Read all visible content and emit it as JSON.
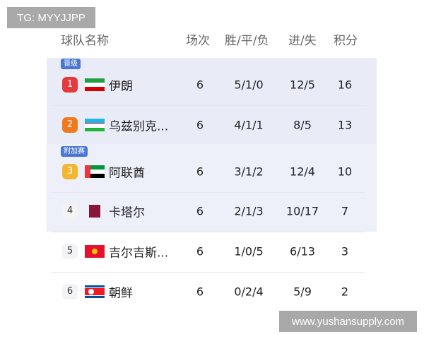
{
  "watermarks": {
    "top": "TG: MYYJJPP",
    "bottom": "www.yushansupply.com"
  },
  "header": {
    "team": "球队名称",
    "played": "场次",
    "wdl": "胜/平/负",
    "goals": "进/失",
    "points": "积分"
  },
  "tags": {
    "promoted": "晋级",
    "playoff": "附加赛"
  },
  "rows": [
    {
      "rank": "1",
      "rank_color": "#e5393b",
      "flag": "iran",
      "name": "伊朗",
      "played": "6",
      "wdl": "5/1/0",
      "goals": "12/5",
      "points": "16"
    },
    {
      "rank": "2",
      "rank_color": "#ef7a1e",
      "flag": "uzbekistan",
      "name": "乌兹别克...",
      "played": "6",
      "wdl": "4/1/1",
      "goals": "8/5",
      "points": "13"
    },
    {
      "rank": "3",
      "rank_color": "#f2b630",
      "flag": "uae",
      "name": "阿联酋",
      "played": "6",
      "wdl": "3/1/2",
      "goals": "12/4",
      "points": "10"
    },
    {
      "rank": "4",
      "rank_color": "",
      "flag": "qatar",
      "name": "卡塔尔",
      "played": "6",
      "wdl": "2/1/3",
      "goals": "10/17",
      "points": "7"
    },
    {
      "rank": "5",
      "rank_color": "",
      "flag": "kyrgyzstan",
      "name": "吉尔吉斯...",
      "played": "6",
      "wdl": "1/0/5",
      "goals": "6/13",
      "points": "3"
    },
    {
      "rank": "6",
      "rank_color": "",
      "flag": "north-korea",
      "name": "朝鲜",
      "played": "6",
      "wdl": "0/2/4",
      "goals": "5/9",
      "points": "2"
    }
  ]
}
